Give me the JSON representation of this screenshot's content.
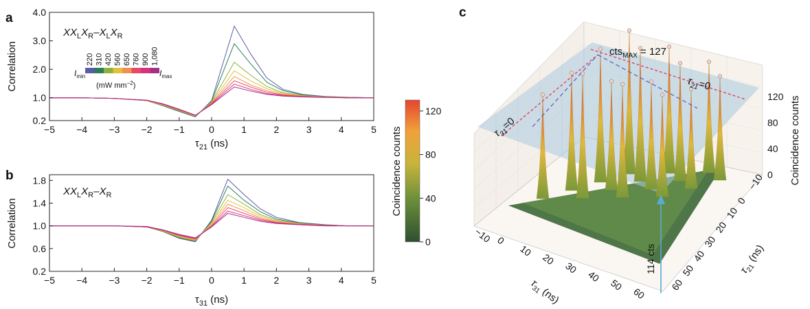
{
  "panel_labels": [
    "a",
    "b",
    "c"
  ],
  "chart_data": [
    {
      "type": "line",
      "panel": "a",
      "title_parts": [
        "XX",
        "L",
        "X",
        "R",
        "–X",
        "L",
        "X",
        "R"
      ],
      "ylabel": "Correlation",
      "xlabel_symbol": "τ",
      "xlabel_sub": "21",
      "xlabel_unit": " (ns)",
      "xlim": [
        -5,
        5
      ],
      "ylim": [
        0.2,
        4.0
      ],
      "x_ticks": [
        "−5",
        "−4",
        "−3",
        "−2",
        "−1",
        "0",
        "1",
        "2",
        "3",
        "4",
        "5"
      ],
      "y_ticks": [
        "0.2",
        "1.0",
        "2.0",
        "3.0",
        "4.0"
      ],
      "y_tick_values": [
        0.2,
        1.0,
        2.0,
        3.0,
        4.0
      ],
      "legend": {
        "values": [
          "220",
          "310",
          "420",
          "560",
          "650",
          "760",
          "900",
          "1,080"
        ],
        "colors": [
          "#5b5ba8",
          "#2e7d5a",
          "#8fb33a",
          "#e3c23b",
          "#f2914f",
          "#e8486a",
          "#d6327f",
          "#a23088"
        ],
        "min_label": "I",
        "min_sub": "min",
        "max_label": "I",
        "max_sub": "max",
        "unit_text": "(mW mm",
        "unit_sup": "−2",
        "unit_close": ")"
      },
      "series": [
        {
          "values": [
            1.0,
            1.0,
            0.98,
            0.9,
            0.72,
            0.52,
            0.33,
            0.9,
            3.52,
            2.55,
            1.7,
            1.3,
            1.12,
            1.05,
            1.02,
            1.0
          ]
        },
        {
          "values": [
            1.0,
            1.0,
            0.98,
            0.9,
            0.73,
            0.53,
            0.34,
            0.88,
            2.9,
            2.2,
            1.55,
            1.25,
            1.1,
            1.04,
            1.02,
            1.0
          ]
        },
        {
          "values": [
            1.0,
            1.0,
            0.98,
            0.9,
            0.74,
            0.55,
            0.35,
            0.85,
            2.25,
            1.8,
            1.4,
            1.18,
            1.08,
            1.03,
            1.01,
            1.0
          ]
        },
        {
          "values": [
            1.0,
            1.0,
            0.98,
            0.9,
            0.75,
            0.56,
            0.36,
            0.83,
            1.95,
            1.6,
            1.32,
            1.15,
            1.07,
            1.03,
            1.01,
            1.0
          ]
        },
        {
          "values": [
            1.0,
            1.0,
            0.98,
            0.91,
            0.76,
            0.57,
            0.37,
            0.82,
            1.75,
            1.45,
            1.25,
            1.12,
            1.06,
            1.02,
            1.01,
            1.0
          ]
        },
        {
          "values": [
            1.0,
            1.0,
            0.98,
            0.91,
            0.77,
            0.58,
            0.38,
            0.8,
            1.6,
            1.38,
            1.2,
            1.1,
            1.05,
            1.02,
            1.0,
            1.0
          ]
        },
        {
          "values": [
            1.0,
            1.0,
            0.98,
            0.91,
            0.78,
            0.59,
            0.38,
            0.78,
            1.48,
            1.3,
            1.15,
            1.08,
            1.04,
            1.02,
            1.0,
            1.0
          ]
        },
        {
          "values": [
            1.0,
            1.0,
            0.98,
            0.92,
            0.79,
            0.6,
            0.39,
            0.76,
            1.38,
            1.24,
            1.12,
            1.06,
            1.03,
            1.01,
            1.0,
            1.0
          ]
        }
      ],
      "x": [
        -5,
        -4,
        -3,
        -2,
        -1.5,
        -1,
        -0.5,
        0,
        0.7,
        1.2,
        1.7,
        2.2,
        2.8,
        3.5,
        4.2,
        5
      ]
    },
    {
      "type": "line",
      "panel": "b",
      "title_parts": [
        "XX",
        "L",
        "X",
        "R",
        "–X",
        "R"
      ],
      "ylabel": "Correlation",
      "xlabel_symbol": "τ",
      "xlabel_sub": "31",
      "xlabel_unit": " (ns)",
      "xlim": [
        -5,
        5
      ],
      "ylim": [
        0.2,
        1.9
      ],
      "x_ticks": [
        "−5",
        "−4",
        "−3",
        "−2",
        "−1",
        "0",
        "1",
        "2",
        "3",
        "4",
        "5"
      ],
      "y_ticks": [
        "0.2",
        "0.6",
        "1.0",
        "1.4",
        "1.8"
      ],
      "y_tick_values": [
        0.2,
        0.6,
        1.0,
        1.4,
        1.8
      ],
      "series": [
        {
          "values": [
            1.0,
            1.0,
            1.0,
            0.98,
            0.9,
            0.78,
            0.72,
            1.1,
            1.82,
            1.55,
            1.3,
            1.15,
            1.06,
            1.02,
            1.0,
            1.0
          ]
        },
        {
          "values": [
            1.0,
            1.0,
            1.0,
            0.98,
            0.9,
            0.79,
            0.73,
            1.08,
            1.7,
            1.45,
            1.25,
            1.12,
            1.05,
            1.02,
            1.0,
            1.0
          ]
        },
        {
          "values": [
            1.0,
            1.0,
            1.0,
            0.98,
            0.91,
            0.8,
            0.74,
            1.06,
            1.55,
            1.38,
            1.2,
            1.1,
            1.04,
            1.01,
            1.0,
            1.0
          ]
        },
        {
          "values": [
            1.0,
            1.0,
            1.0,
            0.98,
            0.91,
            0.81,
            0.75,
            1.04,
            1.45,
            1.32,
            1.17,
            1.08,
            1.04,
            1.01,
            1.0,
            1.0
          ]
        },
        {
          "values": [
            1.0,
            1.0,
            1.0,
            0.98,
            0.92,
            0.82,
            0.76,
            1.02,
            1.38,
            1.27,
            1.14,
            1.07,
            1.03,
            1.01,
            1.0,
            1.0
          ]
        },
        {
          "values": [
            1.0,
            1.0,
            1.0,
            0.98,
            0.92,
            0.83,
            0.77,
            1.0,
            1.32,
            1.22,
            1.12,
            1.06,
            1.03,
            1.01,
            1.0,
            1.0
          ]
        },
        {
          "values": [
            1.0,
            1.0,
            1.0,
            0.98,
            0.93,
            0.84,
            0.78,
            0.99,
            1.26,
            1.18,
            1.1,
            1.05,
            1.02,
            1.0,
            1.0,
            1.0
          ]
        },
        {
          "values": [
            1.0,
            1.0,
            1.0,
            0.99,
            0.93,
            0.85,
            0.79,
            0.98,
            1.22,
            1.15,
            1.08,
            1.04,
            1.02,
            1.0,
            1.0,
            1.0
          ]
        }
      ],
      "x": [
        -5,
        -4,
        -3,
        -2,
        -1.5,
        -1,
        -0.5,
        0,
        0.5,
        1.0,
        1.5,
        2.0,
        2.7,
        3.5,
        4.2,
        5
      ]
    },
    {
      "type": "surface3d",
      "panel": "c",
      "colorbar": {
        "label": "Coincidence counts",
        "ticks": [
          "0",
          "40",
          "80",
          "120"
        ],
        "tick_values": [
          0,
          40,
          80,
          120
        ],
        "range": [
          0,
          130
        ],
        "colors": [
          "#2f4f2f",
          "#6b8f3a",
          "#c8b43a",
          "#f0a23a",
          "#e4452f"
        ]
      },
      "z_axis": {
        "label": "Coincidence counts",
        "ticks": [
          "0",
          "40",
          "80",
          "120"
        ]
      },
      "x_axis": {
        "symbol": "τ",
        "sub": "31",
        "unit": " (ns)",
        "ticks": [
          "−10",
          "0",
          "10",
          "20",
          "30",
          "40",
          "50",
          "60"
        ]
      },
      "y_axis": {
        "symbol": "τ",
        "sub": "21",
        "unit": " (ns)",
        "ticks": [
          "−10",
          "0",
          "10",
          "20",
          "30",
          "40",
          "50",
          "60"
        ]
      },
      "annotations": {
        "max_prefix": "cts",
        "max_sub": "MAX",
        "max_suffix": " = 127",
        "plane_label": "114 cts",
        "tau21_label_sym": "τ",
        "tau21_label_sub": "21",
        "tau21_label_rest": "=0",
        "tau31_label_sym": "τ",
        "tau31_label_sub": "31",
        "tau31_label_rest": "=0"
      },
      "peaks": [
        {
          "tau31": 0,
          "tau21": 0,
          "counts": 92
        },
        {
          "tau31": 10,
          "tau21": 0,
          "counts": 104
        },
        {
          "tau31": 20,
          "tau21": 0,
          "counts": 118
        },
        {
          "tau31": 30,
          "tau21": 0,
          "counts": 127
        },
        {
          "tau31": 10,
          "tau21": 10,
          "counts": 110
        },
        {
          "tau31": 20,
          "tau21": 10,
          "counts": 96
        },
        {
          "tau31": 30,
          "tau21": 10,
          "counts": 118
        },
        {
          "tau31": 40,
          "tau21": 10,
          "counts": 112
        },
        {
          "tau31": 20,
          "tau21": 20,
          "counts": 100
        },
        {
          "tau31": 30,
          "tau21": 20,
          "counts": 95
        },
        {
          "tau31": 40,
          "tau21": 20,
          "counts": 104
        },
        {
          "tau31": 50,
          "tau21": 20,
          "counts": 98
        },
        {
          "tau31": 30,
          "tau21": 30,
          "counts": 90
        },
        {
          "tau31": 40,
          "tau21": 30,
          "counts": 88
        },
        {
          "tau31": 50,
          "tau21": 30,
          "counts": 92
        }
      ]
    }
  ]
}
